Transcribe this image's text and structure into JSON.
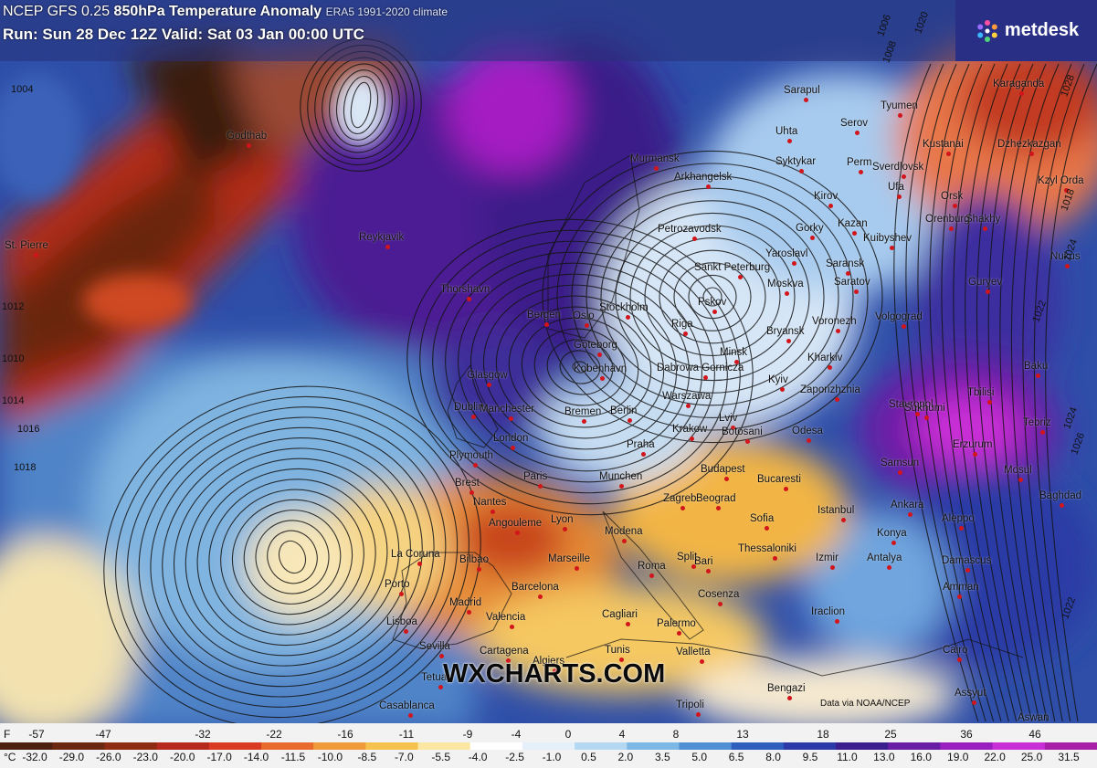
{
  "header": {
    "model": "NCEP GFS 0.25",
    "title": "850hPa Temperature Anomaly",
    "climate": "ERA5 1991-2020 climate",
    "run_line": "Run: Sun 28 Dec 12Z Valid: Sat 03 Jan 00:00 UTC"
  },
  "logo": {
    "text": "metdesk",
    "icon": "metdesk-flower-icon"
  },
  "watermark": "WXCHARTS.COM",
  "source_note": "Data via NOAA/NCEP",
  "cities": [
    "St. Pierre",
    "Godthab",
    "Reykjavik",
    "Thorshavn",
    "Murmansk",
    "Arkhangelsk",
    "Sarapul",
    "Uhta",
    "Syktykar",
    "Serov",
    "Tyumen",
    "Sverdlovsk",
    "Kustanai",
    "Karaganda",
    "Dzhezkazgan",
    "Kzyl Orda",
    "Perm",
    "Kirov",
    "Ufa",
    "Orsk",
    "Shakhy",
    "Orenburg",
    "Kazan",
    "Gorky",
    "Kuibyshev",
    "Petrozavodsk",
    "Yaroslavl",
    "Saransk",
    "Saratov",
    "Guryev",
    "Nukus",
    "Sankt Peterburg",
    "Moskva",
    "Pskov",
    "Bryansk",
    "Voronezh",
    "Volgograd",
    "Stockholm",
    "Oslo",
    "Bergen",
    "Riga",
    "Goteborg",
    "Kobenhavn",
    "Minsk",
    "Kharkiv",
    "Dabrowa Gornicza",
    "Kyiv",
    "Zaporizhzhia",
    "Stavropol",
    "Glasgow",
    "Dublin",
    "Manchester",
    "Warszawa",
    "Bremen",
    "Berlin",
    "London",
    "Plymouth",
    "Krakow",
    "Lviv",
    "Botosani",
    "Odesa",
    "Praha",
    "Brest",
    "Paris",
    "Munchen",
    "Budapest",
    "Nantes",
    "Zagreb",
    "Beograd",
    "Bucaresti",
    "Sukhumi",
    "Tbilisi",
    "Baku",
    "Tebriz",
    "Erzurum",
    "Samsun",
    "Mosul",
    "Baghdad",
    "Ankara",
    "Istanbul",
    "Angouleme",
    "Lyon",
    "Sofia",
    "Konya",
    "Aleppo",
    "Modena",
    "Split",
    "Thessaloniki",
    "La Coruna",
    "Bilbao",
    "Marseille",
    "Roma",
    "Bari",
    "Izmir",
    "Antalya",
    "Damascus",
    "Amman",
    "Porto",
    "Madrid",
    "Barcelona",
    "Cosenza",
    "Cagliari",
    "Palermo",
    "Lisboa",
    "Valencia",
    "Iraclion",
    "Sevilla",
    "Cartagena",
    "Tunis",
    "Algiers",
    "Valletta",
    "Cairo",
    "Tetuan",
    "Casablanca",
    "Bengazi",
    "Tripoli",
    "Assyut",
    "Aswan"
  ],
  "isobar_labels": [
    "1004",
    "1012",
    "1010",
    "1014",
    "1016",
    "1018",
    "1020",
    "1022",
    "1026",
    "1006",
    "1008",
    "1028",
    "1024",
    "1018",
    "1024",
    "1022"
  ],
  "legend": {
    "f_unit": "F",
    "c_unit": "°C",
    "fahrenheit": [
      "-57",
      "-47",
      "-32",
      "-22",
      "-16",
      "-11",
      "-9",
      "-4",
      "0",
      "4",
      "8",
      "13",
      "18",
      "25",
      "36",
      "46"
    ],
    "celsius": [
      "-32.0",
      "-29.0",
      "-26.0",
      "-23.0",
      "-20.0",
      "-17.0",
      "-14.0",
      "-11.5",
      "-10.0",
      "-8.5",
      "-7.0",
      "-5.5",
      "-4.0",
      "-2.5",
      "-1.0",
      "0.5",
      "2.0",
      "3.5",
      "5.0",
      "6.5",
      "8.0",
      "9.5",
      "11.0",
      "13.0",
      "16.0",
      "19.0",
      "22.0",
      "25.0",
      "31.5"
    ],
    "colors": [
      "#4c1f0f",
      "#6b2810",
      "#8e2c13",
      "#b52a1c",
      "#d83a22",
      "#e96a2d",
      "#f09a3b",
      "#f5c24f",
      "#fbe6a2",
      "#ffffff",
      "#e6f0fb",
      "#b4d8f2",
      "#7db9e6",
      "#4f8fd3",
      "#2e5fbf",
      "#2b3aa6",
      "#3b1f8f",
      "#6a1ea6",
      "#9a1fbf",
      "#c92fd6",
      "#a820a8"
    ]
  },
  "colors": {
    "header_bg": "#28327a",
    "logo_bg": "#2a2f86",
    "city_dot": "#d2141b"
  }
}
